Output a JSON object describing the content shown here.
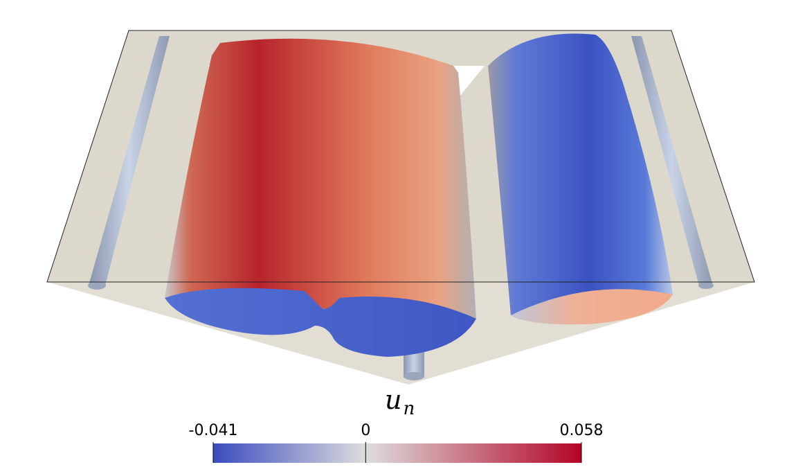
{
  "colorbar": {
    "title": "u",
    "subscript": "n",
    "range": [
      -0.041,
      0.058
    ],
    "ticks": [
      -0.041,
      0,
      0.058
    ],
    "colors": [
      "#3b4cc0",
      "#dddddd",
      "#b40426"
    ]
  }
}
